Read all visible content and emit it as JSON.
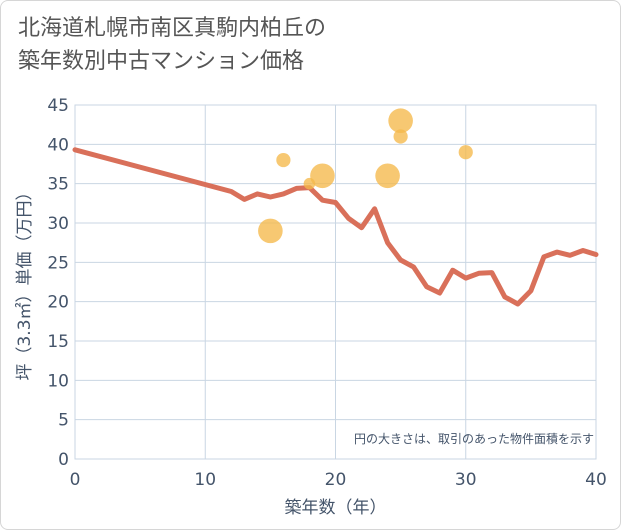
{
  "title_lines": [
    "北海道札幌市南区真駒内柏丘の",
    "築年数別中古マンション価格"
  ],
  "colors": {
    "line": "#d9705a",
    "bubble": "#f5b84a",
    "grid": "#c9d6e3",
    "text": "#44546a"
  },
  "chart_data": {
    "type": "line",
    "xlabel": "築年数（年）",
    "ylabel": "坪（3.3㎡）単価（万円）",
    "xlim": [
      0,
      40
    ],
    "ylim": [
      0,
      45
    ],
    "x_ticks": [
      0,
      10,
      20,
      30,
      40
    ],
    "y_ticks": [
      0,
      5,
      10,
      15,
      20,
      25,
      30,
      35,
      40,
      45
    ],
    "grid": true,
    "note": "円の大きさは、取引のあった物件面積を示す",
    "series": [
      {
        "type": "line",
        "points": [
          [
            0,
            39.3
          ],
          [
            12,
            34.0
          ],
          [
            13,
            33.0
          ],
          [
            14,
            33.7
          ],
          [
            15,
            33.3
          ],
          [
            16,
            33.7
          ],
          [
            17,
            34.4
          ],
          [
            18,
            34.5
          ],
          [
            19,
            32.9
          ],
          [
            20,
            32.6
          ],
          [
            21,
            30.6
          ],
          [
            22,
            29.4
          ],
          [
            23,
            31.8
          ],
          [
            24,
            27.5
          ],
          [
            25,
            25.3
          ],
          [
            26,
            24.4
          ],
          [
            27,
            21.9
          ],
          [
            28,
            21.1
          ],
          [
            29,
            24.0
          ],
          [
            30,
            23.0
          ],
          [
            31,
            23.6
          ],
          [
            32,
            23.7
          ],
          [
            33,
            20.6
          ],
          [
            34,
            19.7
          ],
          [
            35,
            21.4
          ],
          [
            36,
            25.7
          ],
          [
            37,
            26.3
          ],
          [
            38,
            25.9
          ],
          [
            39,
            26.5
          ],
          [
            40,
            26.0
          ]
        ]
      },
      {
        "type": "scatter",
        "points": [
          {
            "x": 15,
            "y": 29.0,
            "size": 3
          },
          {
            "x": 16,
            "y": 38.0,
            "size": 1
          },
          {
            "x": 18,
            "y": 35.0,
            "size": 0.5
          },
          {
            "x": 19,
            "y": 36.0,
            "size": 3
          },
          {
            "x": 24,
            "y": 36.0,
            "size": 3
          },
          {
            "x": 25,
            "y": 43.0,
            "size": 3
          },
          {
            "x": 25,
            "y": 41.0,
            "size": 1
          },
          {
            "x": 30,
            "y": 39.0,
            "size": 1
          }
        ]
      }
    ]
  }
}
